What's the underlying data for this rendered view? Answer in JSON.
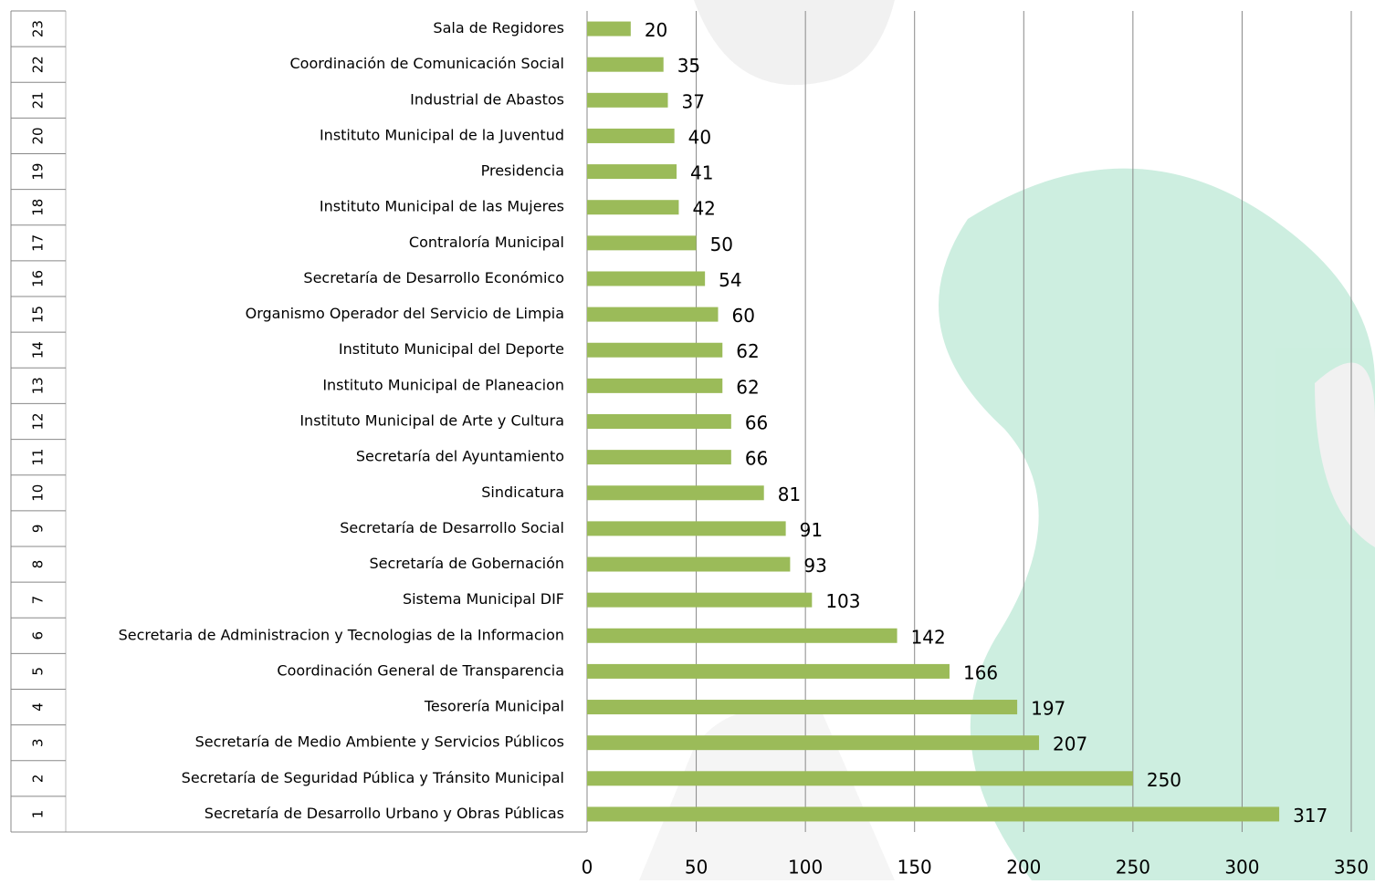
{
  "chart_data": {
    "type": "barh",
    "row_numbers": [
      1,
      2,
      3,
      4,
      5,
      6,
      7,
      8,
      9,
      10,
      11,
      12,
      13,
      14,
      15,
      16,
      17,
      18,
      19,
      20,
      21,
      22,
      23
    ],
    "categories": [
      "Secretaría de Desarrollo Urbano y Obras Públicas",
      "Secretaría de Seguridad Pública y Tránsito Municipal",
      "Secretaría de Medio Ambiente y Servicios Públicos",
      "Tesorería Municipal",
      "Coordinación General de Transparencia",
      "Secretaria de Administracion y Tecnologias de la Informacion",
      "Sistema Municipal DIF",
      "Secretaría de Gobernación",
      "Secretaría de Desarrollo Social",
      "Sindicatura",
      "Secretaría del Ayuntamiento",
      "Instituto Municipal de Arte y Cultura",
      "Instituto Municipal de Planeacion",
      "Instituto Municipal del Deporte",
      "Organismo Operador del Servicio de Limpia",
      "Secretaría de Desarrollo Económico",
      "Contraloría Municipal",
      "Instituto Municipal de las Mujeres",
      "Presidencia",
      "Instituto Municipal de la Juventud",
      "Industrial de Abastos",
      "Coordinación de Comunicación Social",
      "Sala de Regidores"
    ],
    "values": [
      317,
      250,
      207,
      197,
      166,
      142,
      103,
      93,
      91,
      81,
      66,
      66,
      62,
      62,
      60,
      54,
      50,
      42,
      41,
      40,
      37,
      35,
      20
    ],
    "color": "#9bbb59",
    "xlim": [
      0,
      350
    ],
    "xticks": [
      0,
      50,
      100,
      150,
      200,
      250,
      300,
      350
    ],
    "grid": true
  }
}
